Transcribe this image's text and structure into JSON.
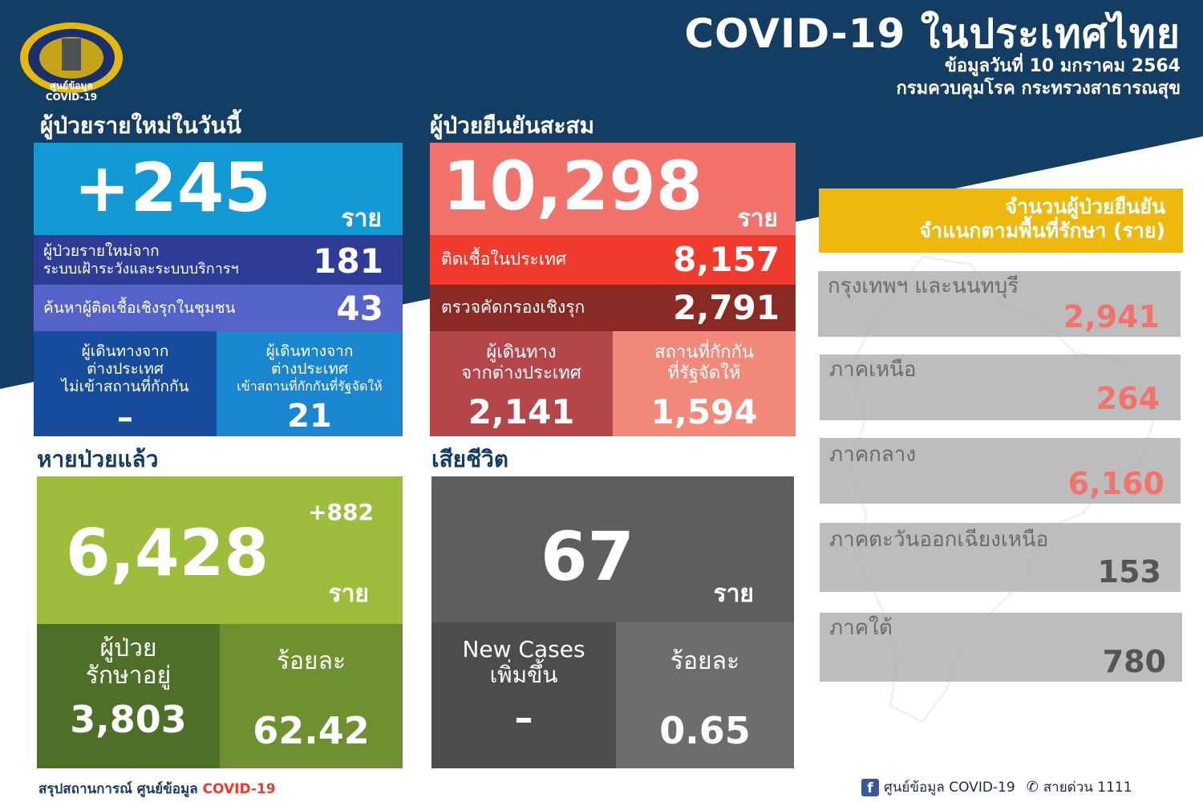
{
  "header": {
    "logo_caption_line1": "ศูนย์ข้อมูล",
    "logo_caption_line2": "COVID-19",
    "title": "COVID-19 ในประเทศไทย",
    "date_line": "ข้อมูลวันที่ 10 มกราคม 2564",
    "org_line": "กรมควบคุมโรค กระทรวงสาธารณสุข"
  },
  "new_cases": {
    "title": "ผู้ป่วยรายใหม่ในวันนี้",
    "total": "+245",
    "unit": "ราย",
    "surveillance_label_line1": "ผู้ป่วยรายใหม่จาก",
    "surveillance_label_line2": "ระบบเฝ้าระวังและระบบบริการฯ",
    "surveillance_value": "181",
    "community_label": "ค้นหาผู้ติดเชื้อเชิงรุกในชุมชน",
    "community_value": "43",
    "travel_no_q_line1": "ผู้เดินทางจาก",
    "travel_no_q_line2": "ต่างประเทศ",
    "travel_no_q_line3": "ไม่เข้าสถานที่กักกัน",
    "travel_no_q_value": "–",
    "travel_q_line1": "ผู้เดินทางจาก",
    "travel_q_line2": "ต่างประเทศ",
    "travel_q_line3": "เข้าสถานที่กักกันที่รัฐจัดให้",
    "travel_q_value": "21"
  },
  "cumulative": {
    "title": "ผู้ป่วยยืนยันสะสม",
    "total": "10,298",
    "unit": "ราย",
    "local_label": "ติดเชื้อในประเทศ",
    "local_value": "8,157",
    "proactive_label": "ตรวจคัดกรองเชิงรุก",
    "proactive_value": "2,791",
    "travel_line1": "ผู้เดินทาง",
    "travel_line2": "จากต่างประเทศ",
    "travel_value": "2,141",
    "quarantine_line1": "สถานที่กักกัน",
    "quarantine_line2": "ที่รัฐจัดให้",
    "quarantine_value": "1,594"
  },
  "recovered": {
    "title": "หายป่วยแล้ว",
    "delta": "+882",
    "total": "6,428",
    "unit": "ราย",
    "treating_line1": "ผู้ป่วย",
    "treating_line2": "รักษาอยู่",
    "treating_value": "3,803",
    "percent_label": "ร้อยละ",
    "percent_value": "62.42"
  },
  "deaths": {
    "title": "เสียชีวิต",
    "total": "67",
    "unit": "ราย",
    "new_line1": "New Cases",
    "new_line2": "เพิ่มขึ้น",
    "new_value": "–",
    "percent_label": "ร้อยละ",
    "percent_value": "0.65"
  },
  "regions": {
    "title_line1": "จำนวนผู้ป่วยยืนยัน",
    "title_line2": "จำแนกตามพื้นที่รักษา (ราย)",
    "items": [
      {
        "name": "กรุงเทพฯ และนนทบุรี",
        "value": "2,941"
      },
      {
        "name": "ภาคเหนือ",
        "value": "264"
      },
      {
        "name": "ภาคกลาง",
        "value": "6,160"
      },
      {
        "name": "ภาคตะวันออกเฉียงเหนือ",
        "value": "153"
      },
      {
        "name": "ภาคใต้",
        "value": "780"
      }
    ]
  },
  "footer": {
    "left_prefix": "สรุปสถานการณ์ ศูนย์ข้อมูล ",
    "left_highlight": "COVID-19",
    "fb_label": "ศูนย์ข้อมูล COVID-19",
    "hotline_label": "สายด่วน 1111"
  },
  "colors": {
    "navy": "#143d63",
    "blue_primary": "#139ad5",
    "indigo": "#2f3c96",
    "periwinkle": "#5563c9",
    "salmon": "#f2726c",
    "red": "#ef3b2d",
    "maroon": "#8a2a24",
    "green": "#9fbd3d",
    "dark_green": "#4d6f27",
    "gray_dark": "#5e5e5e",
    "yellow": "#edb90e",
    "region_value": "#f2726c"
  }
}
